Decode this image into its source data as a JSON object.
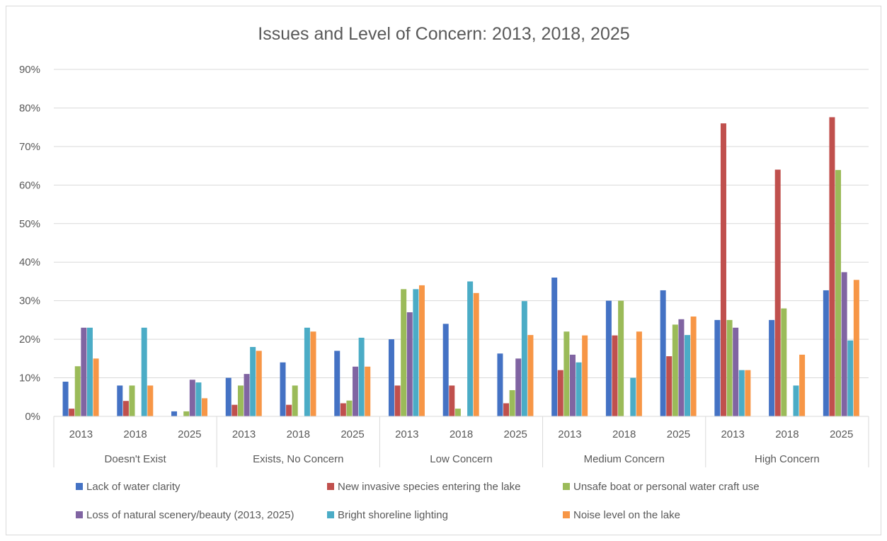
{
  "chart_data": {
    "type": "bar",
    "title": "Issues and Level of Concern: 2013, 2018, 2025",
    "ylim": [
      0,
      90
    ],
    "yticks": [
      0,
      10,
      20,
      30,
      40,
      50,
      60,
      70,
      80,
      90
    ],
    "ytick_labels": [
      "0%",
      "10%",
      "20%",
      "30%",
      "40%",
      "50%",
      "60%",
      "70%",
      "80%",
      "90%"
    ],
    "grid": true,
    "legend_position": "bottom",
    "groups": [
      "Doesn't Exist",
      "Exists, No Concern",
      "Low Concern",
      "Medium Concern",
      "High Concern"
    ],
    "years": [
      "2013",
      "2018",
      "2025"
    ],
    "categories": [
      "Doesn't Exist 2013",
      "Doesn't Exist 2018",
      "Doesn't Exist 2025",
      "Exists, No Concern 2013",
      "Exists, No Concern 2018",
      "Exists, No Concern 2025",
      "Low Concern 2013",
      "Low Concern 2018",
      "Low Concern 2025",
      "Medium Concern 2013",
      "Medium Concern 2018",
      "Medium Concern 2025",
      "High Concern 2013",
      "High Concern 2018",
      "High Concern 2025"
    ],
    "series": [
      {
        "name": "Lack of water clarity",
        "color": "#4472c4",
        "values": [
          9,
          8,
          1.3,
          10,
          14,
          17,
          20,
          24,
          16.3,
          36,
          30,
          32.7,
          25,
          25,
          32.7
        ]
      },
      {
        "name": "New invasive species entering the lake",
        "color": "#c0504d",
        "values": [
          2,
          4,
          0,
          3,
          3,
          3.4,
          8,
          8,
          3.4,
          12,
          21,
          15.6,
          76,
          64,
          77.6
        ]
      },
      {
        "name": "Unsafe boat or personal water craft use",
        "color": "#9bbb59",
        "values": [
          13,
          8,
          1.3,
          8,
          8,
          4.1,
          33,
          2,
          6.8,
          22,
          30,
          23.8,
          25,
          28,
          63.9
        ]
      },
      {
        "name": "Loss of natural scenery/beauty (2013, 2025)",
        "color": "#8064a2",
        "values": [
          23,
          null,
          9.5,
          11,
          null,
          12.9,
          27,
          null,
          15,
          16,
          null,
          25.2,
          23,
          null,
          37.4
        ]
      },
      {
        "name": "Bright shoreline lighting",
        "color": "#4bacc6",
        "values": [
          23,
          23,
          8.8,
          18,
          23,
          20.4,
          33,
          35,
          29.9,
          14,
          10,
          21.1,
          12,
          8,
          19.7
        ]
      },
      {
        "name": "Noise level on the lake",
        "color": "#f79646",
        "values": [
          15,
          8,
          4.7,
          17,
          22,
          12.9,
          34,
          32,
          21.1,
          21,
          22,
          25.9,
          12,
          16,
          35.4
        ]
      }
    ]
  }
}
